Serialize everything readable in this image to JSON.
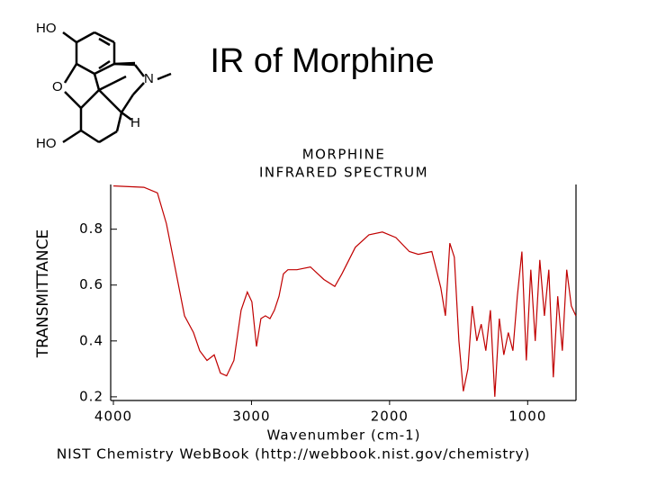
{
  "slide_title": "IR of Morphine",
  "molecule": {
    "labels": [
      "HO",
      "O",
      "N",
      "H",
      "HO"
    ]
  },
  "chart_data": {
    "type": "line",
    "title": "MORPHINE",
    "subtitle": "INFRARED SPECTRUM",
    "x_label": "Wavenumber (cm-1)",
    "y_label": "TRANSMITTANCE",
    "source": "NIST Chemistry WebBook (http://webbook.nist.gov/chemistry)",
    "xlim": [
      4000,
      650
    ],
    "xticks": [
      4000,
      3000,
      2000,
      1000
    ],
    "ylim": [
      0.19,
      0.96
    ],
    "yticks": [
      0.2,
      0.4,
      0.6,
      0.8
    ],
    "series": [
      {
        "name": "Morphine",
        "color": "#c00000",
        "x": [
          4000,
          3779,
          3681,
          3616,
          3550,
          3485,
          3420,
          3375,
          3322,
          3270,
          3225,
          3180,
          3127,
          3075,
          3030,
          2997,
          2964,
          2932,
          2899,
          2866,
          2834,
          2801,
          2769,
          2736,
          2671,
          2573,
          2476,
          2397,
          2345,
          2248,
          2150,
          2052,
          1954,
          1857,
          1792,
          1694,
          1629,
          1596,
          1564,
          1531,
          1498,
          1466,
          1433,
          1401,
          1368,
          1336,
          1303,
          1270,
          1238,
          1205,
          1173,
          1140,
          1107,
          1075,
          1042,
          1010,
          977,
          945,
          912,
          879,
          847,
          814,
          782,
          749,
          717,
          684,
          651
        ],
        "values": [
          0.955,
          0.95,
          0.93,
          0.82,
          0.655,
          0.49,
          0.43,
          0.365,
          0.33,
          0.35,
          0.285,
          0.275,
          0.33,
          0.51,
          0.575,
          0.54,
          0.38,
          0.48,
          0.49,
          0.48,
          0.51,
          0.56,
          0.64,
          0.655,
          0.655,
          0.665,
          0.62,
          0.595,
          0.64,
          0.735,
          0.78,
          0.79,
          0.77,
          0.72,
          0.71,
          0.72,
          0.59,
          0.49,
          0.75,
          0.7,
          0.4,
          0.22,
          0.3,
          0.525,
          0.4,
          0.46,
          0.365,
          0.51,
          0.2,
          0.48,
          0.35,
          0.43,
          0.365,
          0.56,
          0.72,
          0.33,
          0.655,
          0.4,
          0.69,
          0.49,
          0.655,
          0.27,
          0.56,
          0.365,
          0.655,
          0.525,
          0.49
        ]
      }
    ]
  }
}
